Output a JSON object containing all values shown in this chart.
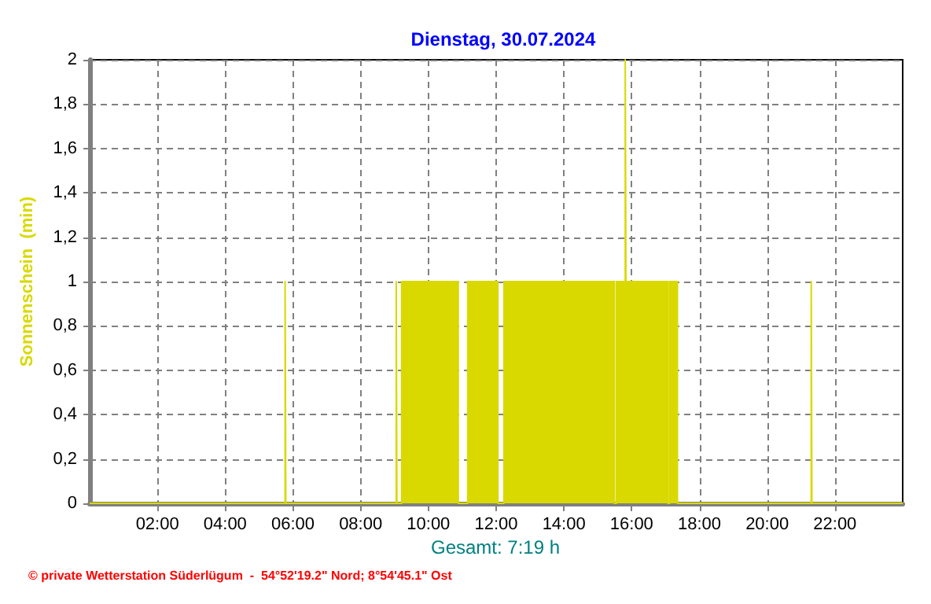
{
  "chart_data": {
    "type": "area",
    "title": "Dienstag, 30.07.2024",
    "ylabel": "Sonnenschein  (min)",
    "annotations": [
      "Gesamt: 7:19 h",
      "© private Wetterstation Süderlügum  -  54°52'19.2\" Nord; 8°54'45.1\" Ost"
    ],
    "x": [
      0,
      5.77,
      5.77,
      5.79,
      5.79,
      9.05,
      9.05,
      9.07,
      9.07,
      9.21,
      9.21,
      10.88,
      10.88,
      11.16,
      11.16,
      12.05,
      12.05,
      12.23,
      12.23,
      15.49,
      15.49,
      15.55,
      15.55,
      15.81,
      15.81,
      15.83,
      15.83,
      17.07,
      17.07,
      17.12,
      17.12,
      17.35,
      17.35,
      21.3,
      21.3,
      21.32,
      21.32,
      24
    ],
    "series": [
      {
        "color": "#d9d900",
        "values": [
          0,
          0,
          1,
          1,
          0,
          0,
          1,
          1,
          0,
          0,
          1,
          1,
          0,
          0,
          1,
          1,
          0,
          0,
          1,
          1,
          0,
          0,
          1,
          1,
          2,
          2,
          1,
          1,
          0,
          0,
          1,
          1,
          0,
          0,
          1,
          1,
          0,
          0
        ]
      }
    ],
    "xlim": [
      0,
      24
    ],
    "xticks": [
      {
        "value": 2,
        "label": "02:00"
      },
      {
        "value": 4,
        "label": "04:00"
      },
      {
        "value": 6,
        "label": "06:00"
      },
      {
        "value": 8,
        "label": "08:00"
      },
      {
        "value": 10,
        "label": "10:00"
      },
      {
        "value": 12,
        "label": "12:00"
      },
      {
        "value": 14,
        "label": "14:00"
      },
      {
        "value": 16,
        "label": "16:00"
      },
      {
        "value": 18,
        "label": "18:00"
      },
      {
        "value": 20,
        "label": "20:00"
      },
      {
        "value": 22,
        "label": "22:00"
      }
    ],
    "ylim": [
      0,
      2
    ],
    "yticks": [
      0,
      {
        "value": 0.2,
        "label": "0,2"
      },
      {
        "value": 0.4,
        "label": "0,4"
      },
      {
        "value": 0.6,
        "label": "0,6"
      },
      {
        "value": 0.8,
        "label": "0,8"
      },
      1,
      {
        "value": 1.2,
        "label": "1,2"
      },
      {
        "value": 1.4,
        "label": "1,4"
      },
      {
        "value": 1.6,
        "label": "1,6"
      },
      {
        "value": 1.8,
        "label": "1,8"
      },
      2
    ],
    "grid": true,
    "marker": "none"
  }
}
